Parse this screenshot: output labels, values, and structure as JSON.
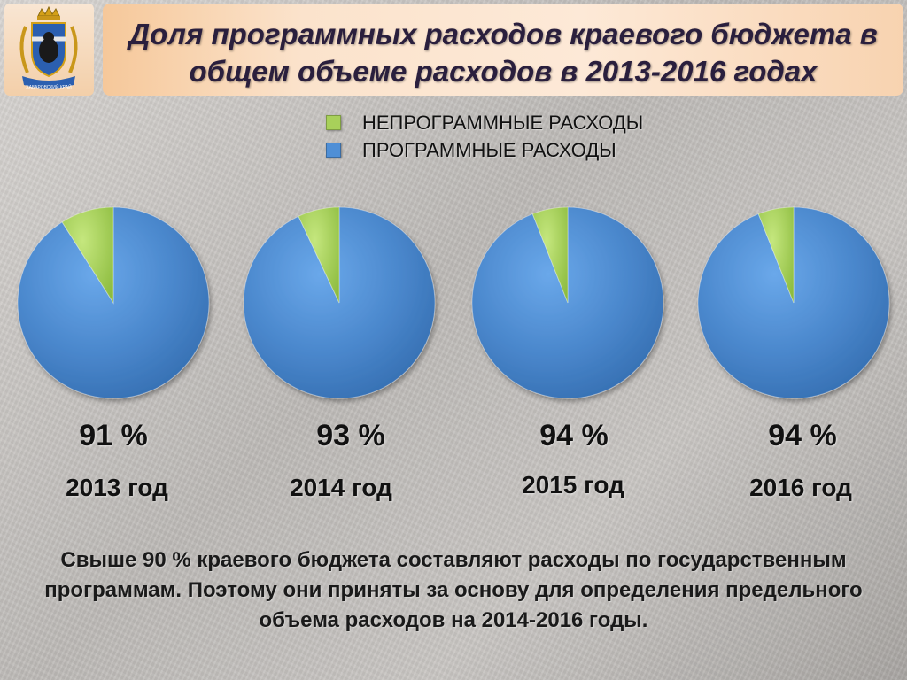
{
  "header": {
    "title": "Доля программных расходов краевого бюджета в общем объеме расходов в 2013-2016 годах"
  },
  "emblem": {
    "caption": "ХАБАРОВСКИЙ КРАЙ"
  },
  "colors": {
    "program": "#4f8fd6",
    "nonprogram": "#a8d05a"
  },
  "chart_data": {
    "type": "pie",
    "title": "Доля программных расходов краевого бюджета в общем объеме расходов в 2013-2016 годах",
    "legend": [
      "НЕПРОГРАММНЫЕ РАСХОДЫ",
      "ПРОГРАММНЫЕ РАСХОДЫ"
    ],
    "legend_position": "top-center",
    "pies": [
      {
        "year_label": "2013 год",
        "percent_label": "91 %",
        "slices": [
          {
            "name": "ПРОГРАММНЫЕ РАСХОДЫ",
            "value": 91
          },
          {
            "name": "НЕПРОГРАММНЫЕ РАСХОДЫ",
            "value": 9
          }
        ]
      },
      {
        "year_label": "2014 год",
        "percent_label": "93 %",
        "slices": [
          {
            "name": "ПРОГРАММНЫЕ РАСХОДЫ",
            "value": 93
          },
          {
            "name": "НЕПРОГРАММНЫЕ РАСХОДЫ",
            "value": 7
          }
        ]
      },
      {
        "year_label": "2015 год",
        "percent_label": "94 %",
        "slices": [
          {
            "name": "ПРОГРАММНЫЕ РАСХОДЫ",
            "value": 94
          },
          {
            "name": "НЕПРОГРАММНЫЕ РАСХОДЫ",
            "value": 6
          }
        ]
      },
      {
        "year_label": "2016 год",
        "percent_label": "94 %",
        "slices": [
          {
            "name": "ПРОГРАММНЫЕ РАСХОДЫ",
            "value": 94
          },
          {
            "name": "НЕПРОГРАММНЫЕ РАСХОДЫ",
            "value": 6
          }
        ]
      }
    ]
  },
  "note": "Свыше 90 % краевого бюджета составляют расходы по государственным программам. Поэтому они приняты за основу для определения предельного объема расходов на 2014-2016 годы."
}
